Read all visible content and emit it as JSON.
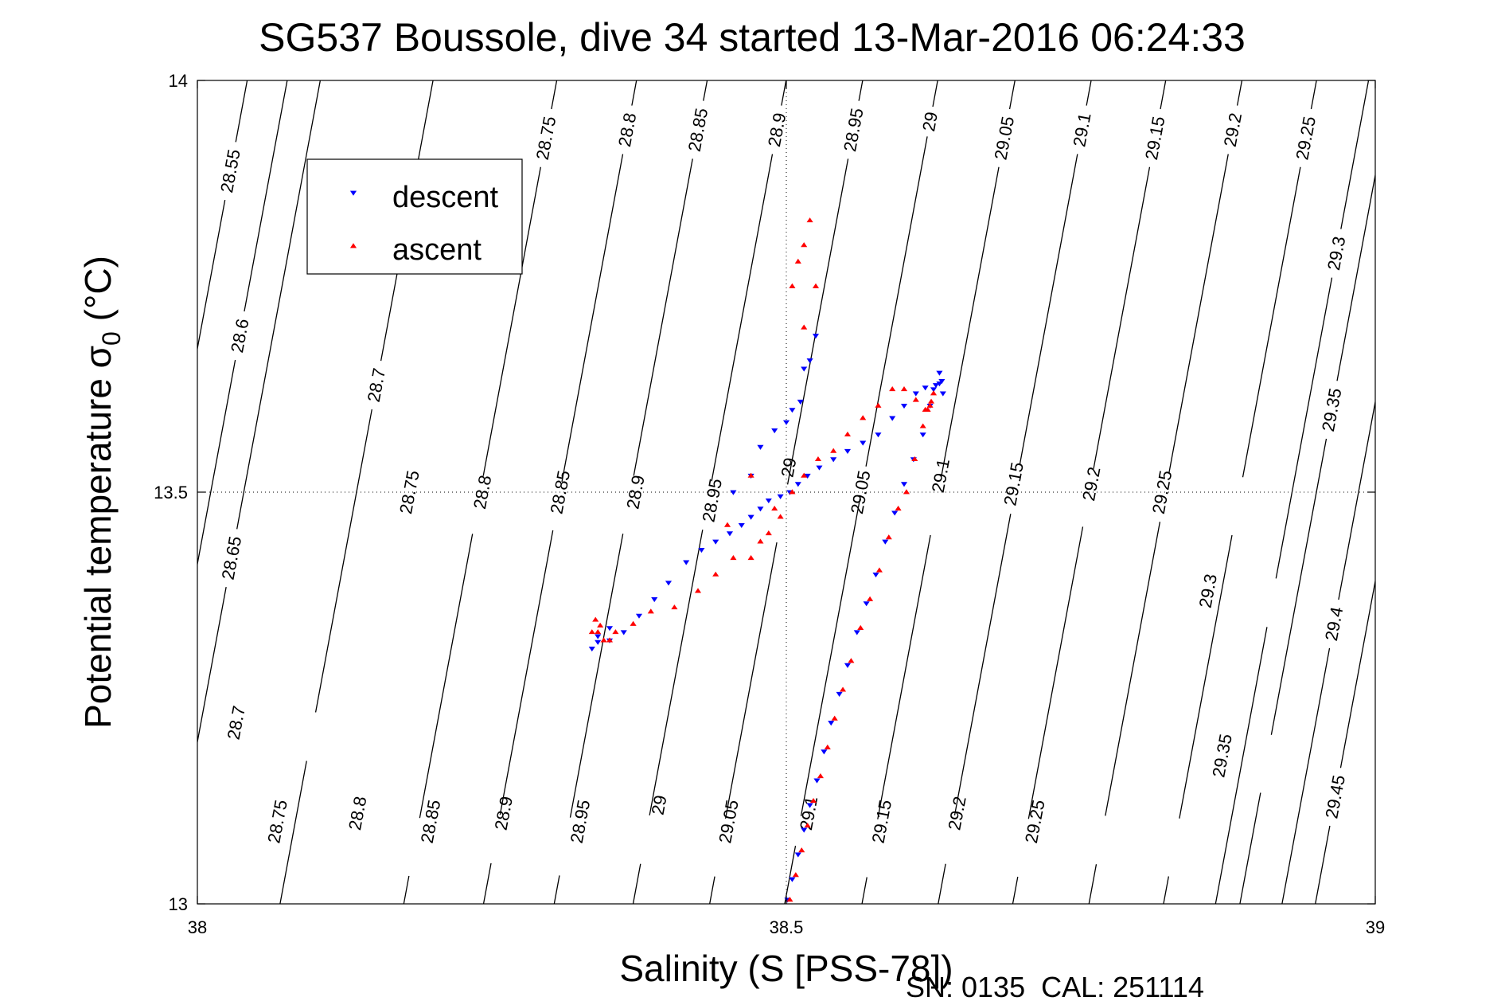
{
  "chart_data": {
    "type": "scatter",
    "title": "SG537 Boussole, dive 34 started 13-Mar-2016 06:24:33",
    "xlabel": "Salinity (S [PSS-78])",
    "ylabel": "Potential temperature σ",
    "ylabel_subscript": "0",
    "ylabel_unit": " (°C)",
    "xlim": [
      38,
      39
    ],
    "ylim": [
      13,
      14
    ],
    "xticks": [
      "38",
      "38.5",
      "39"
    ],
    "yticks": [
      "13",
      "13.5",
      "14"
    ],
    "grid": "dotted at ticks",
    "legend_placement": "top-left",
    "footer": "SN: 0135  CAL: 251114",
    "series": [
      {
        "name": "descent",
        "color": "#0000ff",
        "marker": "triangle-down",
        "x": [
          38.501,
          38.505,
          38.51,
          38.515,
          38.52,
          38.526,
          38.532,
          38.538,
          38.545,
          38.552,
          38.56,
          38.568,
          38.576,
          38.584,
          38.592,
          38.6,
          38.608,
          38.616,
          38.622,
          38.627,
          38.63,
          38.632,
          38.633,
          38.63,
          38.625,
          38.618,
          38.61,
          38.6,
          38.59,
          38.578,
          38.565,
          38.552,
          38.54,
          38.528,
          38.518,
          38.51,
          38.503,
          38.495,
          38.485,
          38.478,
          38.47,
          38.462,
          38.452,
          38.44,
          38.428,
          38.415,
          38.4,
          38.388,
          38.375,
          38.362,
          38.35,
          38.34,
          38.335,
          38.34,
          38.35,
          38.478,
          38.49,
          38.5,
          38.512,
          38.525,
          38.515,
          38.505,
          38.52,
          38.47,
          38.455
        ],
        "y": [
          13.005,
          13.03,
          13.06,
          13.09,
          13.12,
          13.15,
          13.185,
          13.22,
          13.255,
          13.29,
          13.33,
          13.365,
          13.4,
          13.44,
          13.475,
          13.51,
          13.54,
          13.57,
          13.605,
          13.63,
          13.645,
          13.635,
          13.62,
          13.632,
          13.625,
          13.627,
          13.62,
          13.605,
          13.59,
          13.57,
          13.56,
          13.55,
          13.54,
          13.53,
          13.52,
          13.51,
          13.5,
          13.495,
          13.49,
          13.48,
          13.47,
          13.46,
          13.45,
          13.44,
          13.43,
          13.415,
          13.39,
          13.37,
          13.35,
          13.33,
          13.32,
          13.318,
          13.31,
          13.325,
          13.335,
          13.555,
          13.575,
          13.585,
          13.61,
          13.69,
          13.65,
          13.6,
          13.66,
          13.52,
          13.5
        ]
      },
      {
        "name": "ascent",
        "color": "#ff0000",
        "marker": "triangle-up",
        "x": [
          38.503,
          38.508,
          38.513,
          38.518,
          38.523,
          38.529,
          38.535,
          38.541,
          38.548,
          38.555,
          38.563,
          38.571,
          38.579,
          38.587,
          38.595,
          38.602,
          38.609,
          38.616,
          38.62,
          38.623,
          38.625,
          38.622,
          38.618,
          38.61,
          38.6,
          38.59,
          38.578,
          38.565,
          38.552,
          38.54,
          38.527,
          38.515,
          38.505,
          38.495,
          38.485,
          38.478,
          38.47,
          38.455,
          38.44,
          38.425,
          38.405,
          38.385,
          38.37,
          38.355,
          38.345,
          38.34,
          38.335,
          38.338,
          38.342,
          38.35,
          38.505,
          38.51,
          38.515,
          38.52,
          38.525,
          38.515,
          38.49,
          38.47,
          38.45
        ],
        "y": [
          13.005,
          13.035,
          13.065,
          13.095,
          13.125,
          13.155,
          13.19,
          13.225,
          13.26,
          13.295,
          13.335,
          13.37,
          13.405,
          13.445,
          13.48,
          13.5,
          13.54,
          13.58,
          13.6,
          13.61,
          13.62,
          13.605,
          13.6,
          13.612,
          13.625,
          13.625,
          13.605,
          13.59,
          13.57,
          13.55,
          13.54,
          13.52,
          13.5,
          13.47,
          13.45,
          13.44,
          13.42,
          13.42,
          13.4,
          13.38,
          13.36,
          13.355,
          13.34,
          13.33,
          13.32,
          13.33,
          13.33,
          13.345,
          13.338,
          13.32,
          13.75,
          13.78,
          13.8,
          13.83,
          13.75,
          13.7,
          13.48,
          13.52,
          13.46
        ]
      }
    ],
    "density_contours": [
      {
        "value": "28.55",
        "labels": [
          {
            "x": 38.028,
            "y": 13.89
          }
        ]
      },
      {
        "value": "28.6",
        "labels": [
          {
            "x": 38.036,
            "y": 13.69
          }
        ]
      },
      {
        "value": "28.65",
        "labels": [
          {
            "x": 38.029,
            "y": 13.42
          }
        ]
      },
      {
        "value": "28.7",
        "labels": [
          {
            "x": 38.152,
            "y": 13.63
          },
          {
            "x": 38.033,
            "y": 13.22
          }
        ]
      },
      {
        "value": "28.75",
        "labels": [
          {
            "x": 38.296,
            "y": 13.93
          },
          {
            "x": 38.18,
            "y": 13.5
          },
          {
            "x": 38.068,
            "y": 13.1
          }
        ]
      },
      {
        "value": "28.8",
        "labels": [
          {
            "x": 38.365,
            "y": 13.94
          },
          {
            "x": 38.242,
            "y": 13.5
          },
          {
            "x": 38.136,
            "y": 13.11
          }
        ]
      },
      {
        "value": "28.85",
        "labels": [
          {
            "x": 38.425,
            "y": 13.94
          },
          {
            "x": 38.308,
            "y": 13.5
          },
          {
            "x": 38.198,
            "y": 13.1
          }
        ]
      },
      {
        "value": "28.9",
        "labels": [
          {
            "x": 38.492,
            "y": 13.94
          },
          {
            "x": 38.372,
            "y": 13.5
          },
          {
            "x": 38.26,
            "y": 13.11
          }
        ]
      },
      {
        "value": "28.95",
        "labels": [
          {
            "x": 38.557,
            "y": 13.94
          },
          {
            "x": 38.437,
            "y": 13.49
          },
          {
            "x": 38.325,
            "y": 13.1
          }
        ]
      },
      {
        "value": "29",
        "labels": [
          {
            "x": 38.622,
            "y": 13.95
          },
          {
            "x": 38.502,
            "y": 13.53
          },
          {
            "x": 38.392,
            "y": 13.12
          }
        ]
      },
      {
        "value": "29.05",
        "labels": [
          {
            "x": 38.685,
            "y": 13.93
          },
          {
            "x": 38.563,
            "y": 13.5
          },
          {
            "x": 38.451,
            "y": 13.1
          }
        ]
      },
      {
        "value": "29.1",
        "labels": [
          {
            "x": 38.751,
            "y": 13.94
          },
          {
            "x": 38.631,
            "y": 13.52
          },
          {
            "x": 38.519,
            "y": 13.11
          }
        ]
      },
      {
        "value": "29.15",
        "labels": [
          {
            "x": 38.813,
            "y": 13.93
          },
          {
            "x": 38.693,
            "y": 13.51
          },
          {
            "x": 38.581,
            "y": 13.1
          }
        ]
      },
      {
        "value": "29.2",
        "labels": [
          {
            "x": 38.879,
            "y": 13.94
          },
          {
            "x": 38.759,
            "y": 13.51
          },
          {
            "x": 38.645,
            "y": 13.11
          }
        ]
      },
      {
        "value": "29.25",
        "labels": [
          {
            "x": 38.941,
            "y": 13.93
          },
          {
            "x": 38.819,
            "y": 13.5
          },
          {
            "x": 38.711,
            "y": 13.1
          }
        ]
      },
      {
        "value": "29.3",
        "labels": [
          {
            "x": 38.967,
            "y": 13.79
          },
          {
            "x": 38.858,
            "y": 13.38
          }
        ]
      },
      {
        "value": "29.35",
        "labels": [
          {
            "x": 38.963,
            "y": 13.6
          },
          {
            "x": 38.87,
            "y": 13.18
          }
        ]
      },
      {
        "value": "29.4",
        "labels": [
          {
            "x": 38.965,
            "y": 13.34
          }
        ]
      },
      {
        "value": "29.45",
        "labels": [
          {
            "x": 38.966,
            "y": 13.13
          }
        ]
      }
    ]
  }
}
